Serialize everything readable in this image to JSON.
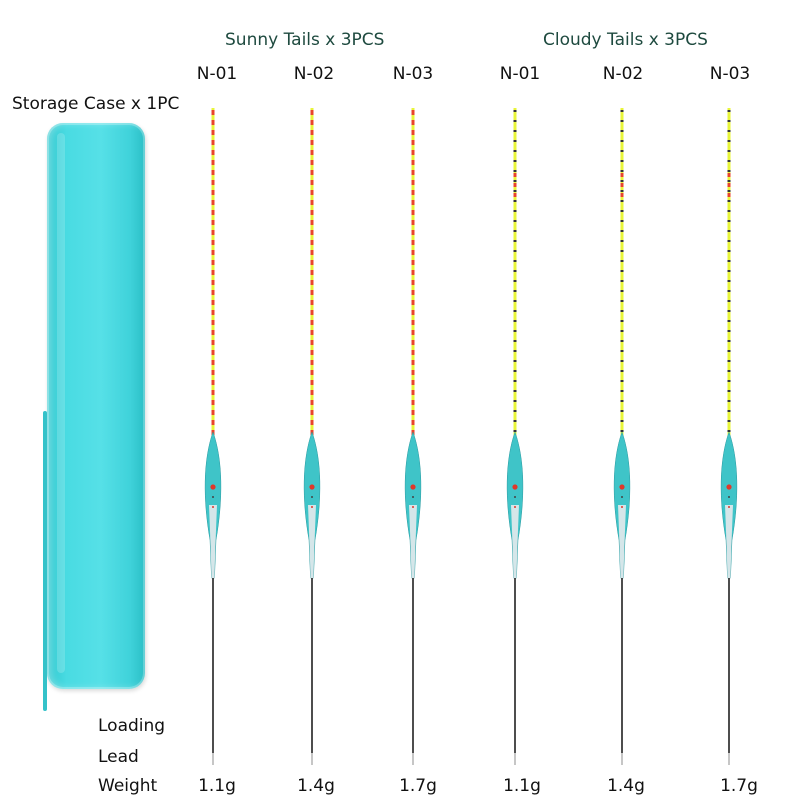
{
  "groups": [
    {
      "title": "Sunny Tails x 3PCS"
    },
    {
      "title": "Cloudy Tails x 3PCS"
    }
  ],
  "case_label": "Storage Case x 1PC",
  "row_labels": {
    "loading": "Loading",
    "lead": "Lead",
    "weight": "Weight"
  },
  "floats": [
    {
      "model": "N-01",
      "weight": "1.1g",
      "tail": "sunny"
    },
    {
      "model": "N-02",
      "weight": "1.4g",
      "tail": "sunny"
    },
    {
      "model": "N-03",
      "weight": "1.7g",
      "tail": "sunny"
    },
    {
      "model": "N-01",
      "weight": "1.1g",
      "tail": "cloudy"
    },
    {
      "model": "N-02",
      "weight": "1.4g",
      "tail": "cloudy"
    },
    {
      "model": "N-03",
      "weight": "1.7g",
      "tail": "cloudy"
    }
  ],
  "colors": {
    "case": "#4fdde4",
    "body": "#3fc4c8",
    "tail_yellow": "#e8f53a",
    "tail_red": "#e8452a",
    "stem": "#222222"
  }
}
